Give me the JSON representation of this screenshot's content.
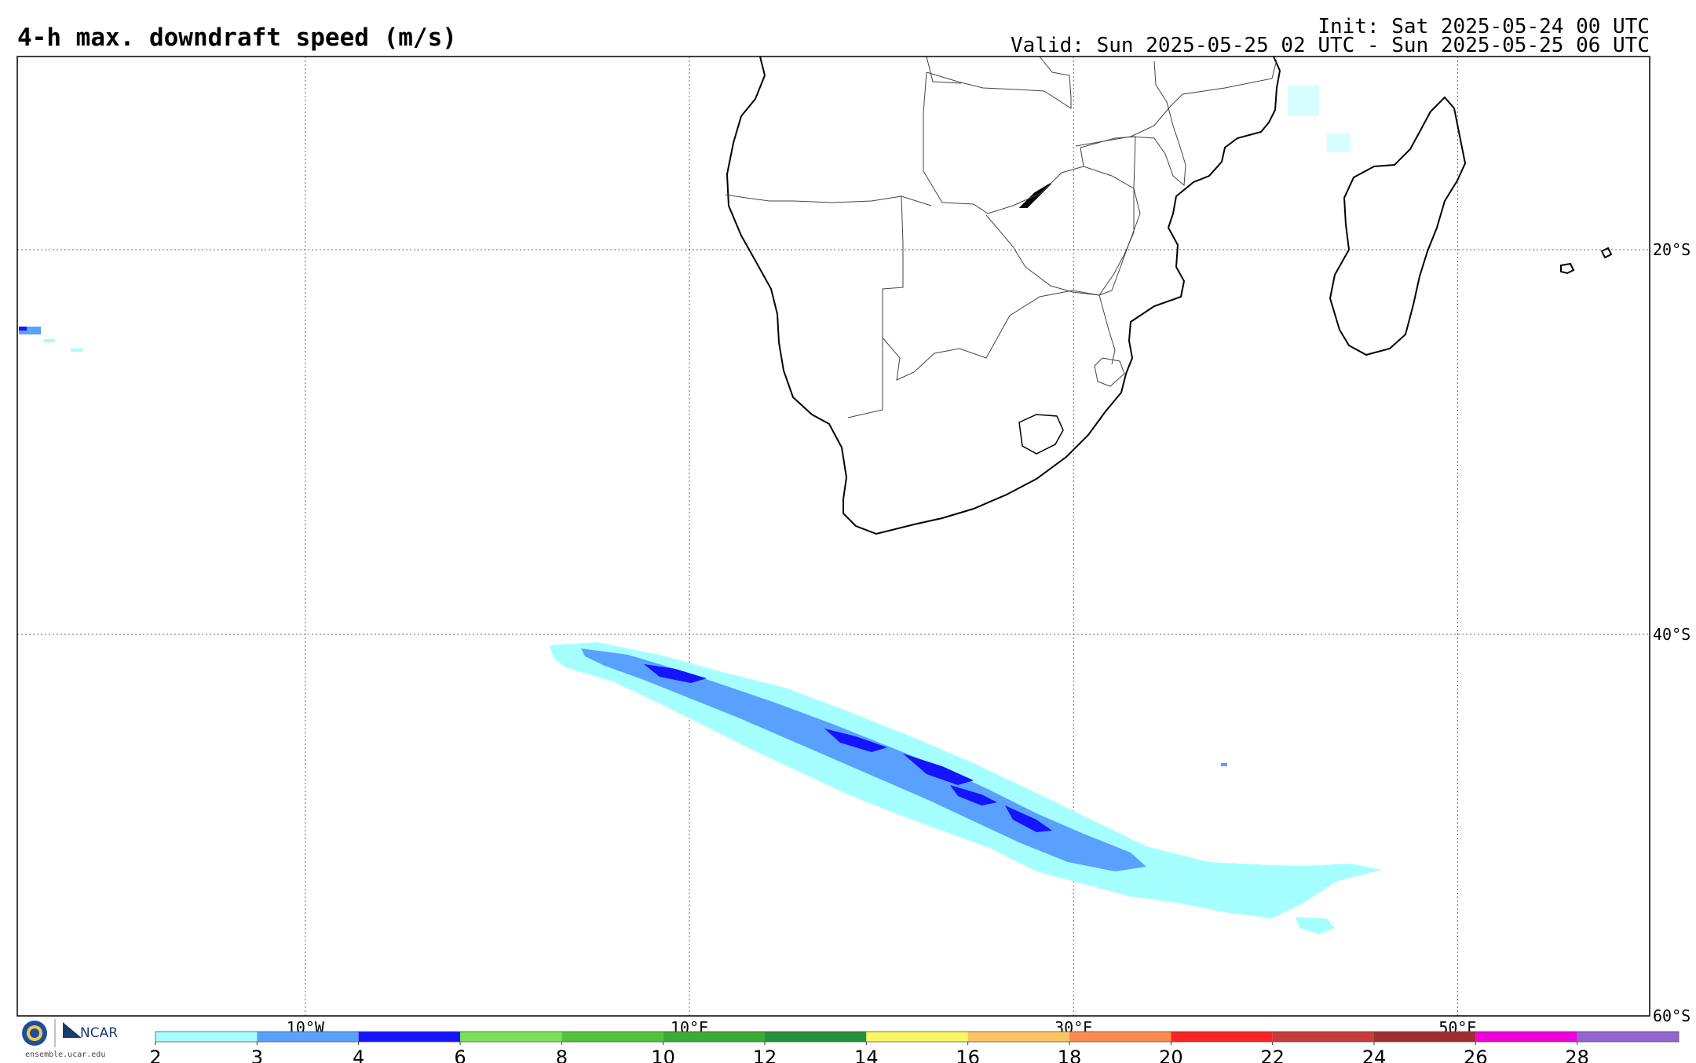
{
  "title": "4-h max. downdraft speed (m/s)",
  "init": "Init: Sat 2025-05-24 00 UTC",
  "valid": "Valid: Sun 2025-05-25 02 UTC - Sun 2025-05-25 06 UTC",
  "map": {
    "lon_range": [
      -25,
      60
    ],
    "lat_range": [
      -60,
      -10
    ],
    "lon_labels": [
      "10°W",
      "10°E",
      "30°E",
      "50°E"
    ],
    "lat_labels": [
      "20°S",
      "40°S",
      "60°S"
    ]
  },
  "colorbar": {
    "ticks": [
      "2",
      "3",
      "4",
      "6",
      "8",
      "10",
      "12",
      "14",
      "16",
      "18",
      "20",
      "22",
      "24",
      "26",
      "28"
    ],
    "colors": [
      "#a6ffff",
      "#5aa0ff",
      "#1414ff",
      "#7ae05a",
      "#52c43c",
      "#3aab35",
      "#27913a",
      "#faf764",
      "#fcc562",
      "#fb8b4e",
      "#f72424",
      "#c83b3b",
      "#9e2e2e",
      "#f000dc",
      "#9265d0"
    ]
  },
  "logo": {
    "nsf": "NSF",
    "ncar": "NCAR",
    "url": "ensemble.ucar.edu"
  }
}
